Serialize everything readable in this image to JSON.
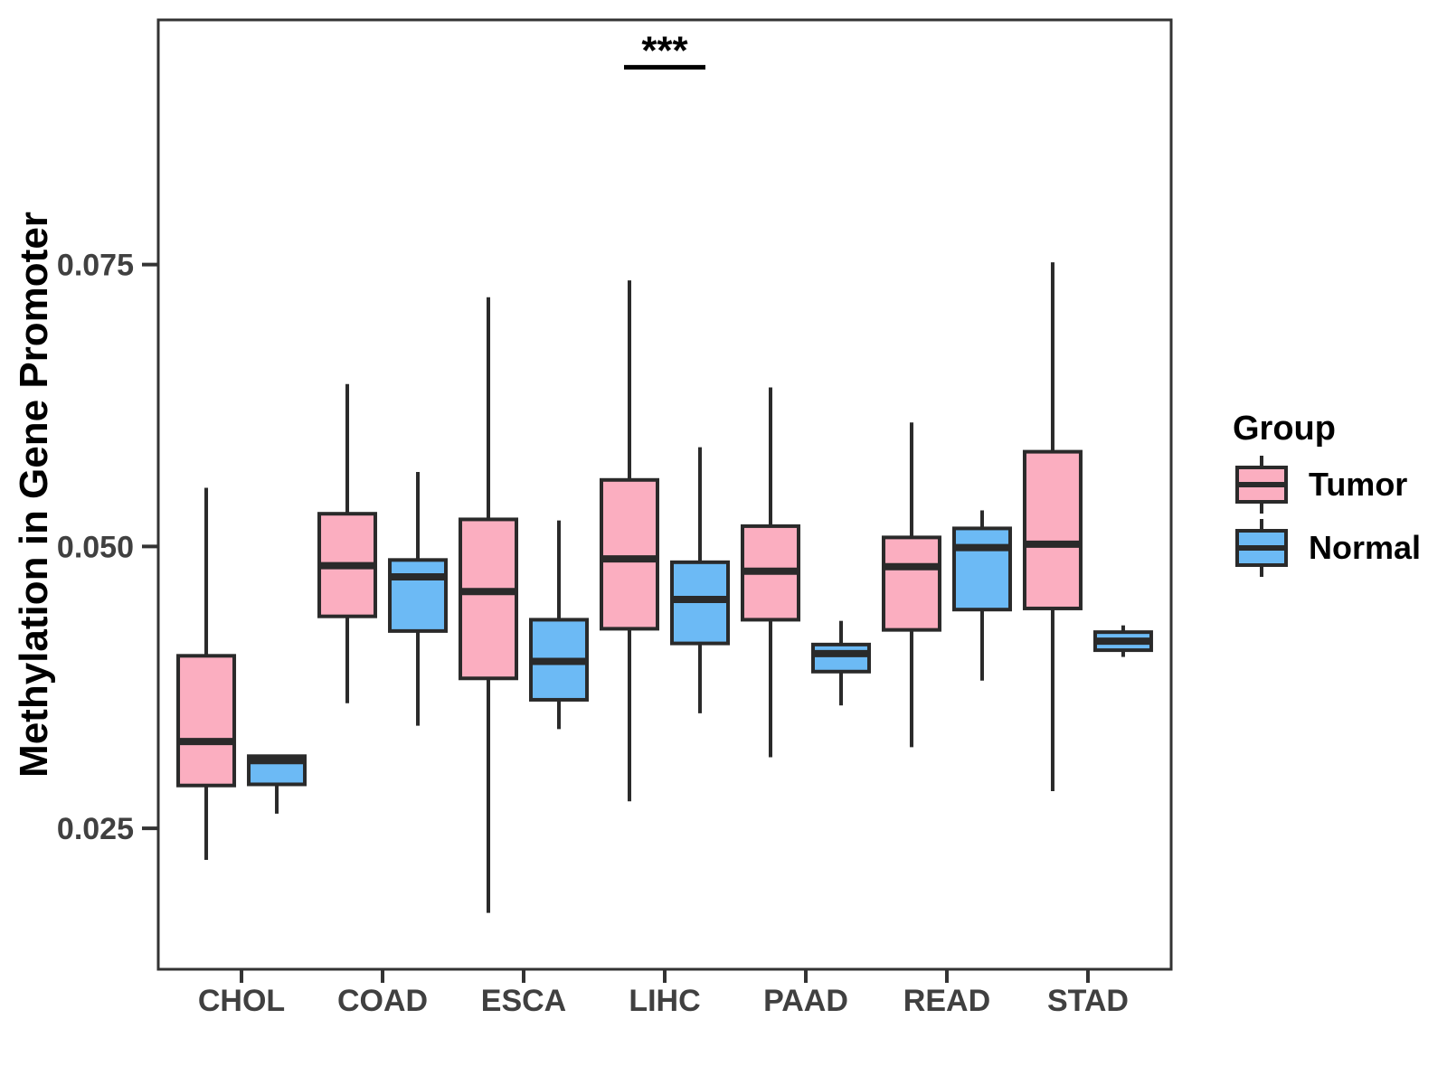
{
  "figure": {
    "y_axis_title": "Methylation in Gene Promoter",
    "legend_title": "Group",
    "significance_label": "***"
  },
  "chart_data": {
    "type": "boxplot",
    "title": "",
    "xlabel": "",
    "ylabel": "Methylation in Gene Promoter",
    "categories": [
      "CHOL",
      "COAD",
      "ESCA",
      "LIHC",
      "PAAD",
      "READ",
      "STAD"
    ],
    "groups": [
      "Tumor",
      "Normal"
    ],
    "y_ticks": [
      0.025,
      0.05,
      0.075
    ],
    "y_tick_labels": [
      "0.025",
      "0.050",
      "0.075"
    ],
    "ylim": [
      0.0125,
      0.0967
    ],
    "grid": false,
    "legend_position": "right",
    "legend": {
      "title": "Group",
      "entries": [
        {
          "label": "Tumor",
          "color": "#FBAEC0"
        },
        {
          "label": "Normal",
          "color": "#6CBAF5"
        }
      ]
    },
    "colors": {
      "tumor_fill": "#FBAEC0",
      "normal_fill": "#6CBAF5",
      "box_stroke": "#2A2A2A",
      "axis_line": "#333333",
      "axis_text": "#404040",
      "title_text": "#000000"
    },
    "annotation": {
      "text": "***",
      "category": "LIHC",
      "bar_y": 0.0925
    },
    "series": [
      {
        "name": "Tumor",
        "color": "#FBAEC0",
        "boxes": [
          {
            "category": "CHOL",
            "low": 0.0222,
            "q1": 0.0288,
            "median": 0.0327,
            "q3": 0.0403,
            "high": 0.0552
          },
          {
            "category": "COAD",
            "low": 0.0361,
            "q1": 0.0438,
            "median": 0.0483,
            "q3": 0.0529,
            "high": 0.0644
          },
          {
            "category": "ESCA",
            "low": 0.0175,
            "q1": 0.0383,
            "median": 0.046,
            "q3": 0.0524,
            "high": 0.0721
          },
          {
            "category": "LIHC",
            "low": 0.0274,
            "q1": 0.0427,
            "median": 0.0489,
            "q3": 0.0559,
            "high": 0.0736
          },
          {
            "category": "PAAD",
            "low": 0.0313,
            "q1": 0.0435,
            "median": 0.0478,
            "q3": 0.0518,
            "high": 0.0641
          },
          {
            "category": "READ",
            "low": 0.0322,
            "q1": 0.0426,
            "median": 0.0482,
            "q3": 0.0508,
            "high": 0.061
          },
          {
            "category": "STAD",
            "low": 0.0283,
            "q1": 0.0445,
            "median": 0.0502,
            "q3": 0.0584,
            "high": 0.0752
          }
        ]
      },
      {
        "name": "Normal",
        "color": "#6CBAF5",
        "boxes": [
          {
            "category": "CHOL",
            "low": 0.0263,
            "q1": 0.0289,
            "median": 0.031,
            "q3": 0.0314,
            "high": 0.0314
          },
          {
            "category": "COAD",
            "low": 0.0341,
            "q1": 0.0425,
            "median": 0.0473,
            "q3": 0.0488,
            "high": 0.0566
          },
          {
            "category": "ESCA",
            "low": 0.0338,
            "q1": 0.0364,
            "median": 0.0398,
            "q3": 0.0435,
            "high": 0.0523
          },
          {
            "category": "LIHC",
            "low": 0.0352,
            "q1": 0.0414,
            "median": 0.0453,
            "q3": 0.0486,
            "high": 0.0588
          },
          {
            "category": "PAAD",
            "low": 0.0359,
            "q1": 0.0389,
            "median": 0.0405,
            "q3": 0.0413,
            "high": 0.0434
          },
          {
            "category": "READ",
            "low": 0.0381,
            "q1": 0.0444,
            "median": 0.0499,
            "q3": 0.0516,
            "high": 0.0532
          },
          {
            "category": "STAD",
            "low": 0.0402,
            "q1": 0.0408,
            "median": 0.0416,
            "q3": 0.0424,
            "high": 0.043
          }
        ]
      }
    ]
  }
}
